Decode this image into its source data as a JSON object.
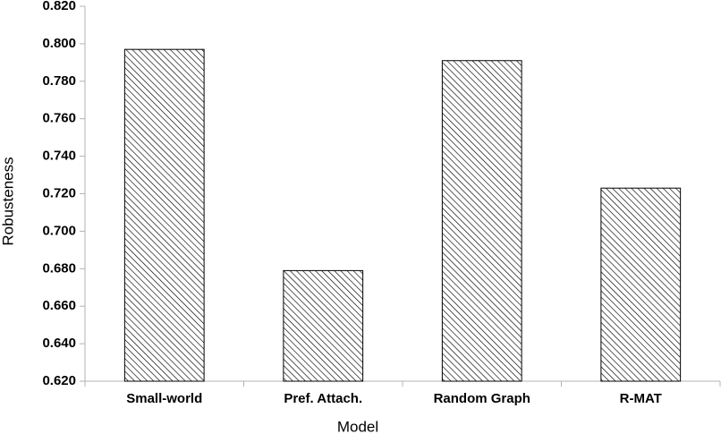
{
  "chart_data": {
    "type": "bar",
    "x_label": "Model",
    "y_label": "Robusteness",
    "categories": [
      "Small-world",
      "Pref. Attach.",
      "Random Graph",
      "R-MAT"
    ],
    "values": [
      0.797,
      0.679,
      0.791,
      0.723
    ],
    "color": "#000000",
    "ylim": [
      0.62,
      0.82
    ],
    "yticks": [
      {
        "value": 0.62,
        "label": "0.620"
      },
      {
        "value": 0.64,
        "label": "0.640"
      },
      {
        "value": 0.66,
        "label": "0.660"
      },
      {
        "value": 0.68,
        "label": "0.680"
      },
      {
        "value": 0.7,
        "label": "0.700"
      },
      {
        "value": 0.72,
        "label": "0.720"
      },
      {
        "value": 0.74,
        "label": "0.740"
      },
      {
        "value": 0.76,
        "label": "0.760"
      },
      {
        "value": 0.78,
        "label": "0.780"
      },
      {
        "value": 0.8,
        "label": "0.800"
      },
      {
        "value": 0.82,
        "label": "0.820"
      }
    ],
    "grid": false
  }
}
